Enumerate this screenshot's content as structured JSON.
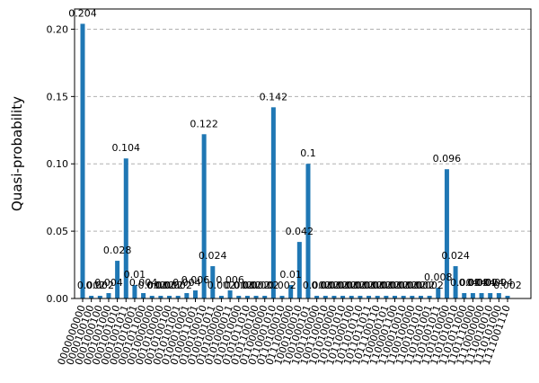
{
  "chart_data": {
    "type": "bar",
    "title": "",
    "xlabel": "",
    "ylabel": "Quasi-probability",
    "ylim": [
      0,
      0.215
    ],
    "yticks": [
      "0.00",
      "0.05",
      "0.10",
      "0.15",
      "0.20"
    ],
    "ytick_values": [
      0,
      0.05,
      0.1,
      0.15,
      0.2
    ],
    "grid": "horizontal dashed",
    "bar_color": "#1f77b4",
    "categories": [
      "0000000000",
      "0000100100",
      "0001000100",
      "0001001000",
      "0001001010",
      "0001001011",
      "0001010001",
      "0001011000",
      "0010000000",
      "0010100000",
      "0010100100",
      "0010101001",
      "0100010001",
      "0100011001",
      "0100100010",
      "0100101011",
      "0101000000",
      "0101000011",
      "0101010000",
      "0101011010",
      "0101100100",
      "0110000000",
      "0110001010",
      "0110100010",
      "0111000000",
      "1000100010",
      "1001000101",
      "1001100000",
      "1001100010",
      "1010100000",
      "1010101010",
      "1011000100",
      "1011010110",
      "1011011011",
      "1011100110",
      "1100000101",
      "1100001100",
      "1100010010",
      "1100100000",
      "1100101010",
      "1101001001",
      "1101001011",
      "1101010000",
      "1101010010",
      "1101011000",
      "1101110000",
      "1110000000",
      "1110010010",
      "1110101000",
      "1111001110"
    ],
    "values": [
      0.204,
      0.002,
      0.002,
      0.004,
      0.028,
      0.104,
      0.01,
      0.004,
      0.002,
      0.002,
      0.002,
      0.002,
      0.004,
      0.006,
      0.122,
      0.024,
      0.002,
      0.006,
      0.002,
      0.002,
      0.002,
      0.002,
      0.142,
      0.002,
      0.01,
      0.042,
      0.1,
      0.002,
      0.002,
      0.002,
      0.002,
      0.002,
      0.002,
      0.002,
      0.002,
      0.002,
      0.002,
      0.002,
      0.002,
      0.002,
      0.002,
      0.008,
      0.096,
      0.024,
      0.004,
      0.004,
      0.004,
      0.004,
      0.004,
      0.002
    ],
    "labels": [
      "0.204",
      "0.002",
      "0.002",
      "0.004",
      "0.028",
      "0.104",
      "0.01",
      "0.004",
      "0.002",
      "0.002",
      "0.002",
      "0.002",
      "0.004",
      "0.006",
      "0.122",
      "0.024",
      "0.002",
      "0.006",
      "0.002",
      "0.002",
      "0.002",
      "0.002",
      "0.142",
      "0.002",
      "0.01",
      "0.042",
      "0.1",
      "0.002",
      "0.002",
      "0.002",
      "0.002",
      "0.002",
      "0.002",
      "0.002",
      "0.002",
      "0.002",
      "0.002",
      "0.002",
      "0.002",
      "0.002",
      "0.002",
      "0.008",
      "0.096",
      "0.024",
      "0.004",
      "0.004",
      "0.004",
      "0.004",
      "0.004",
      "0.002"
    ]
  }
}
